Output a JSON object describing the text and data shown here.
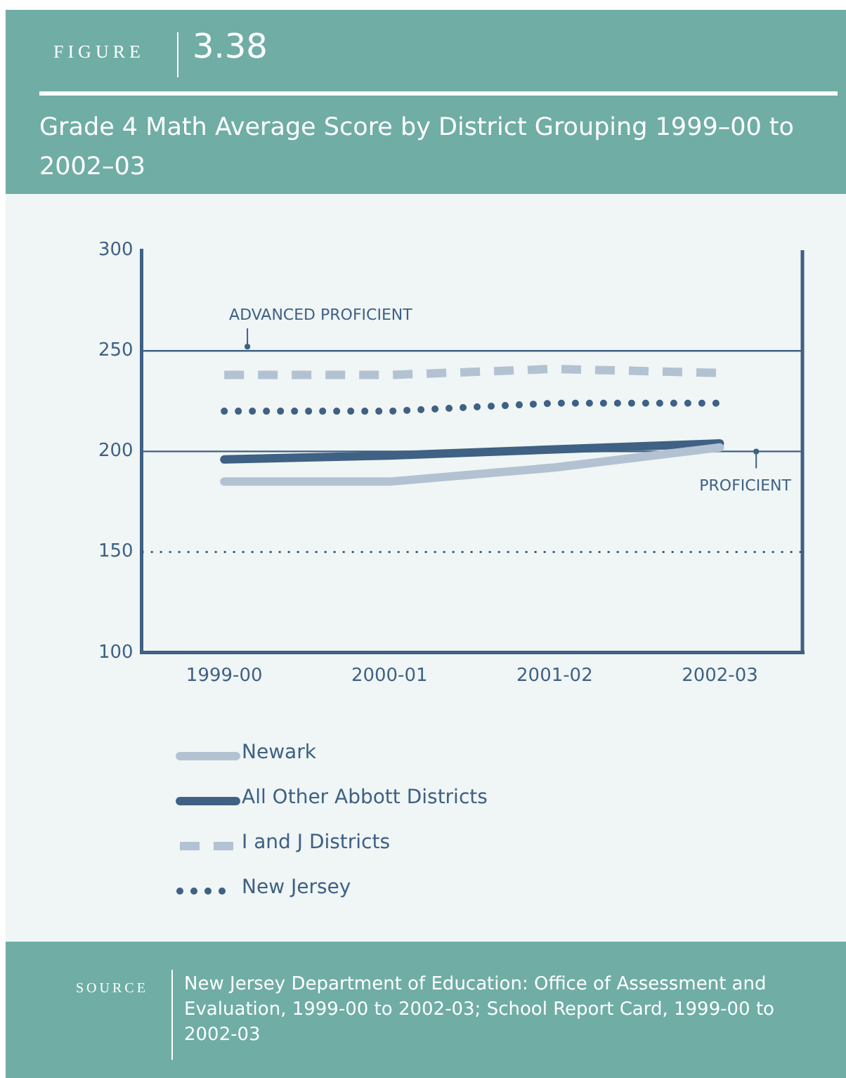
{
  "chart_data": {
    "type": "line",
    "title": "Grade 4 Math Average Score by District Grouping 1999–00 to 2002–03",
    "categories": [
      "1999-00",
      "2000-01",
      "2001-02",
      "2002-03"
    ],
    "series": [
      {
        "name": "Newark",
        "color": "#b3c2d2",
        "line_style": "solid",
        "values": [
          185,
          185,
          192,
          202
        ]
      },
      {
        "name": "All Other Abbott Districts",
        "color": "#3e6184",
        "line_style": "solid",
        "values": [
          196,
          198,
          201,
          204
        ]
      },
      {
        "name": "I and J Districts",
        "color": "#b3c2d2",
        "line_style": "dashed",
        "values": [
          238,
          238,
          241,
          239
        ]
      },
      {
        "name": "New Jersey",
        "color": "#3e6184",
        "line_style": "dotted",
        "values": [
          220,
          220,
          224,
          224
        ]
      }
    ],
    "ylim": [
      100,
      300
    ],
    "yticks": [
      100,
      150,
      200,
      250,
      300
    ],
    "grid": false,
    "legend": "bottom",
    "marker": "none",
    "ref_lines": [
      {
        "axis": "y",
        "value": 250,
        "label": "ADVANCED PROFICIENT",
        "color": "#3e6184",
        "line_style": "solid"
      },
      {
        "axis": "y",
        "value": 200,
        "label": "PROFICIENT",
        "color": "#3e6184",
        "line_style": "solid"
      },
      {
        "axis": "y",
        "value": 150,
        "color": "#3e6184",
        "line_style": "dotted"
      }
    ],
    "annotations": [
      "FIGURE",
      "3.38",
      "SOURCE",
      "New Jersey Department of Education: Office of Assessment and Evaluation, 1999-00 to 2002-03; School Report Card, 1999-00 to 2002-03"
    ]
  }
}
